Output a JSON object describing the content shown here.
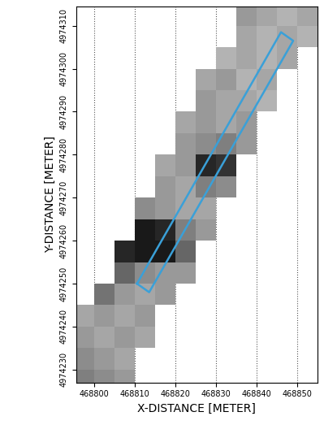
{
  "chart_data": {
    "type": "heatmap",
    "xlabel": "X-DISTANCE [METER]",
    "ylabel": "Y-DISTANCE [METER]",
    "xlim": [
      468795.5,
      468855
    ],
    "ylim": [
      4974227,
      4974314.5
    ],
    "xticks": [
      468800,
      468810,
      468820,
      468830,
      468840,
      468850
    ],
    "yticks": [
      4974230,
      4974240,
      4974250,
      4974260,
      4974270,
      4974280,
      4974290,
      4974300,
      4974310
    ],
    "grid": "x",
    "x_edges": [
      468795,
      468800,
      468805,
      468810,
      468815,
      468820,
      468825,
      468830,
      468835,
      468840,
      468845,
      468850,
      468855
    ],
    "y_edges": [
      4974225,
      4974230,
      4974235,
      4974240,
      4974245,
      4974250,
      4974255,
      4974260,
      4974265,
      4974270,
      4974275,
      4974280,
      4974285,
      4974290,
      4974295,
      4974300,
      4974305,
      4974310,
      4974315
    ],
    "value_range": [
      0,
      1
    ],
    "cells": [
      [
        0.5,
        0.45,
        0.4,
        null,
        null,
        null,
        null,
        null,
        null,
        null,
        null,
        null
      ],
      [
        0.45,
        0.4,
        0.35,
        null,
        null,
        null,
        null,
        null,
        null,
        null,
        null,
        null
      ],
      [
        0.4,
        0.35,
        0.4,
        0.35,
        null,
        null,
        null,
        null,
        null,
        null,
        null,
        null
      ],
      [
        0.35,
        0.4,
        0.35,
        0.4,
        null,
        null,
        null,
        null,
        null,
        null,
        null,
        null
      ],
      [
        null,
        0.55,
        0.4,
        0.35,
        0.4,
        null,
        null,
        null,
        null,
        null,
        null,
        null
      ],
      [
        null,
        null,
        0.6,
        0.45,
        0.4,
        0.4,
        null,
        null,
        null,
        null,
        null,
        null
      ],
      [
        null,
        null,
        0.85,
        0.9,
        0.9,
        0.6,
        null,
        null,
        null,
        null,
        null,
        null
      ],
      [
        null,
        null,
        null,
        0.9,
        0.85,
        0.5,
        0.4,
        null,
        null,
        null,
        null,
        null
      ],
      [
        null,
        null,
        null,
        0.45,
        0.4,
        0.35,
        0.35,
        null,
        null,
        null,
        null,
        null
      ],
      [
        null,
        null,
        null,
        null,
        0.4,
        0.35,
        0.5,
        0.45,
        null,
        null,
        null,
        null
      ],
      [
        null,
        null,
        null,
        null,
        0.35,
        0.4,
        0.85,
        0.8,
        null,
        null,
        null,
        null
      ],
      [
        null,
        null,
        null,
        null,
        null,
        0.4,
        0.45,
        0.5,
        0.4,
        null,
        null,
        null
      ],
      [
        null,
        null,
        null,
        null,
        null,
        0.35,
        0.4,
        0.35,
        0.4,
        null,
        null,
        null
      ],
      [
        null,
        null,
        null,
        null,
        null,
        null,
        0.4,
        0.35,
        0.35,
        0.3,
        null,
        null
      ],
      [
        null,
        null,
        null,
        null,
        null,
        null,
        0.35,
        0.4,
        0.3,
        0.35,
        null,
        null
      ],
      [
        null,
        null,
        null,
        null,
        null,
        null,
        null,
        0.3,
        0.35,
        0.3,
        0.35,
        null
      ],
      [
        null,
        null,
        null,
        null,
        null,
        null,
        null,
        null,
        0.35,
        0.3,
        0.35,
        0.3
      ],
      [
        null,
        null,
        null,
        null,
        null,
        null,
        null,
        null,
        0.4,
        0.35,
        0.3,
        0.35
      ]
    ],
    "outline": {
      "x": [
        468810.5,
        468813.5,
        468849,
        468846
      ],
      "y": [
        4974250,
        4974248,
        4974306.5,
        4974308.5
      ],
      "color": "#3aa0d8"
    }
  }
}
